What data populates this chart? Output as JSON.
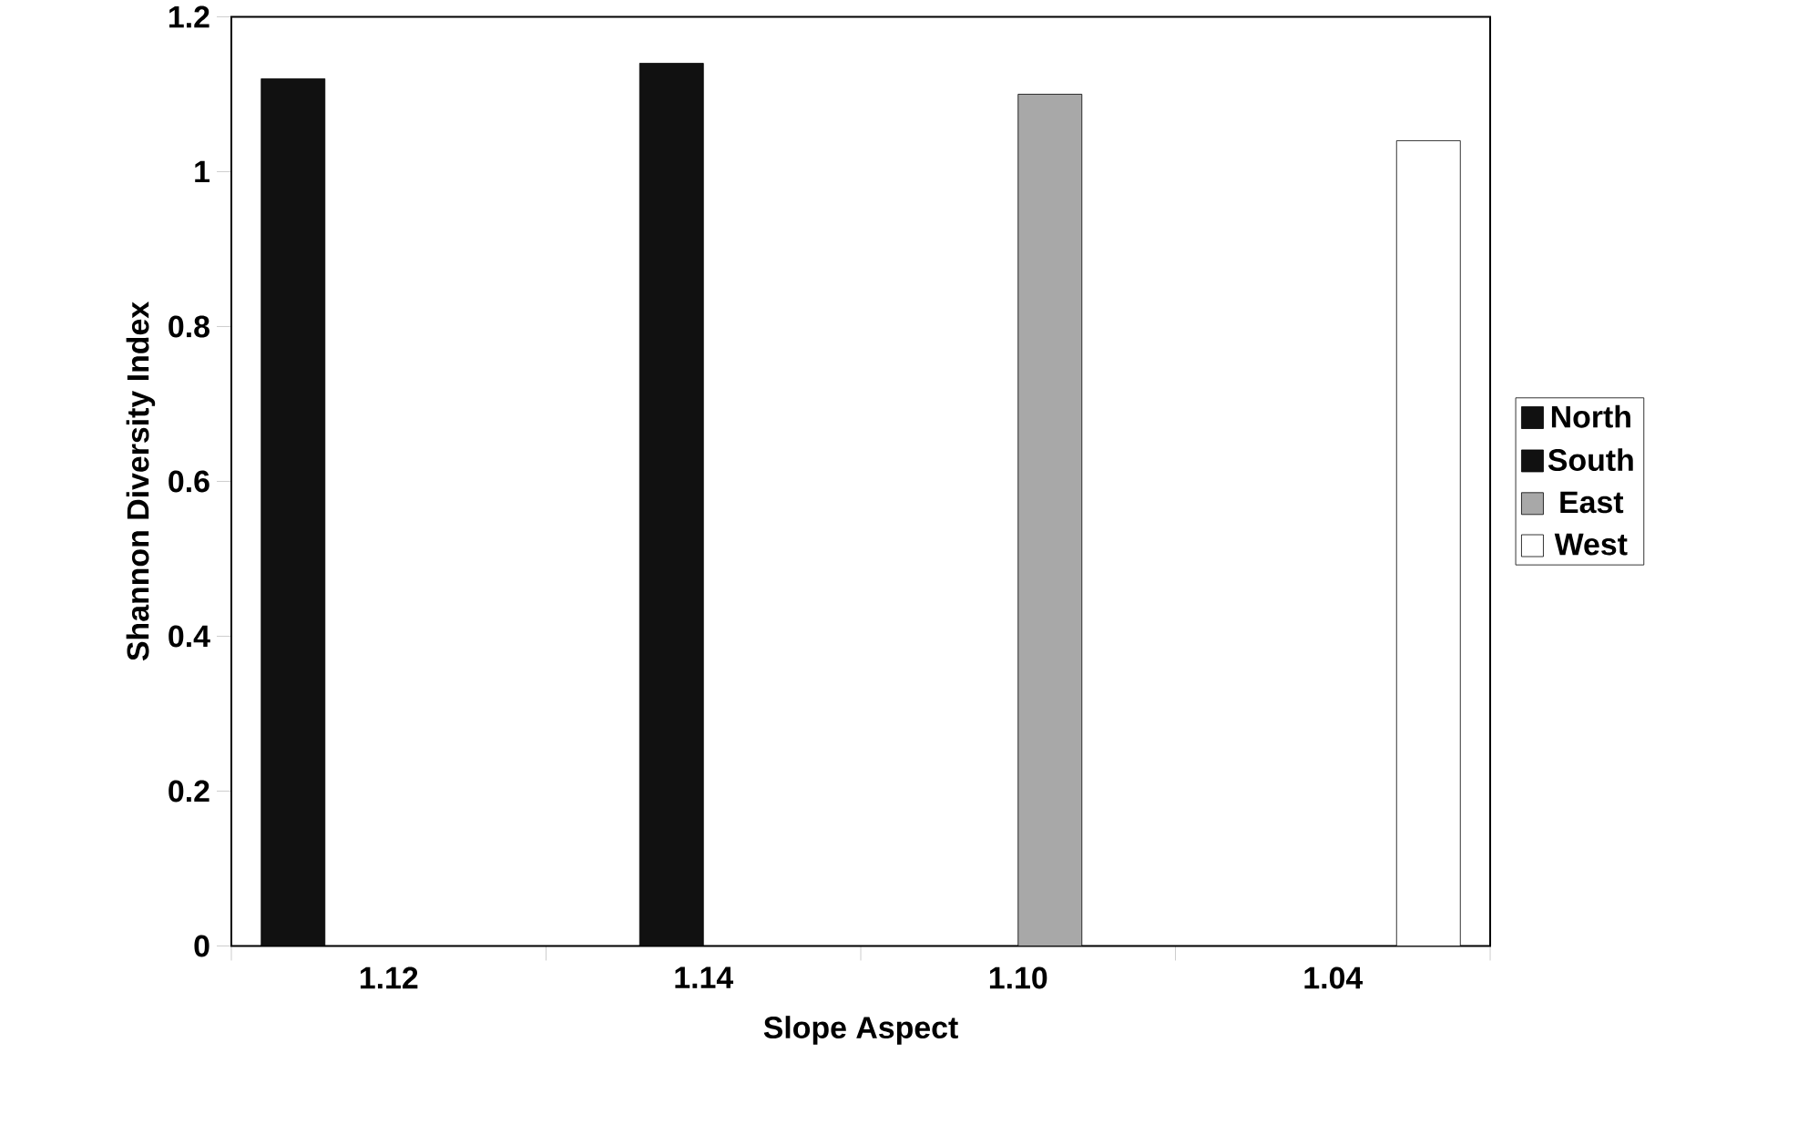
{
  "chart_data": {
    "type": "bar",
    "xlabel": "Slope Aspect",
    "ylabel": "Shannon Diversity Index",
    "categories": [
      "1.12",
      "1.14",
      "1.10",
      "1.04"
    ],
    "series": [
      {
        "name": "North",
        "color": "#111111",
        "values": [
          1.12,
          null,
          null,
          null
        ]
      },
      {
        "name": "South",
        "color": "#111111",
        "values": [
          null,
          1.14,
          null,
          null
        ]
      },
      {
        "name": "East",
        "color": "#a8a8a8",
        "values": [
          null,
          null,
          1.1,
          null
        ]
      },
      {
        "name": "West",
        "color": "#ffffff",
        "values": [
          null,
          null,
          null,
          1.04
        ]
      }
    ],
    "ylim": [
      0,
      1.2
    ],
    "yticks": [
      0,
      0.2,
      0.4,
      0.6,
      0.8,
      1,
      1.2
    ],
    "grid": false,
    "legend": "right"
  }
}
